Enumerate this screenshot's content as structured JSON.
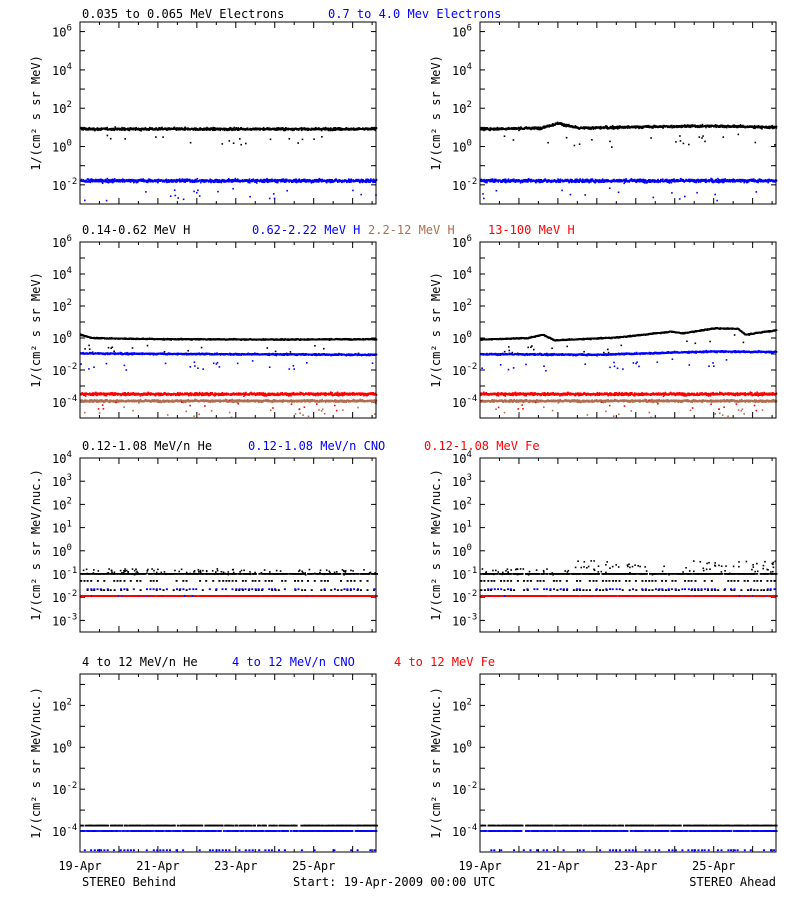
{
  "colors": {
    "black": "#000000",
    "blue": "#0000ff",
    "tan": "#b06e50",
    "red": "#ff0000"
  },
  "x_axis": {
    "tick_labels": [
      "19-Apr",
      "21-Apr",
      "23-Apr",
      "25-Apr"
    ],
    "range_days": [
      0,
      7.6
    ]
  },
  "footer": {
    "left": "STEREO Behind",
    "center": "Start: 19-Apr-2009 00:00 UTC",
    "right": "STEREO Ahead"
  },
  "rows": [
    {
      "legend": [
        {
          "text": "0.035 to 0.065 MeV Electrons",
          "color": "#000000"
        },
        {
          "text": "0.7 to 4.0 Mev Electrons",
          "color": "#0000ff"
        }
      ],
      "ylabel": "1/(cm² s sr MeV)",
      "y_exp_range": [
        -3,
        6.5
      ],
      "y_ticks": [
        {
          "exp": 6,
          "label": "6"
        },
        {
          "exp": 4,
          "label": "4"
        },
        {
          "exp": 2,
          "label": "2"
        },
        {
          "exp": 0,
          "label": "0"
        },
        {
          "exp": -2,
          "label": "-2"
        }
      ]
    },
    {
      "legend": [
        {
          "text": "0.14-0.62 MeV H",
          "color": "#000000"
        },
        {
          "text": "0.62-2.22 MeV H",
          "color": "#0000ff"
        },
        {
          "text": "2.2-12 MeV H",
          "color": "#b06e50"
        },
        {
          "text": "13-100 MeV H",
          "color": "#ff0000"
        }
      ],
      "ylabel": "1/(cm² s sr MeV)",
      "y_exp_range": [
        -5,
        6
      ],
      "y_ticks": [
        {
          "exp": 6,
          "label": "6"
        },
        {
          "exp": 4,
          "label": "4"
        },
        {
          "exp": 2,
          "label": "2"
        },
        {
          "exp": 0,
          "label": "0"
        },
        {
          "exp": -2,
          "label": "-2"
        },
        {
          "exp": -4,
          "label": "-4"
        }
      ]
    },
    {
      "legend": [
        {
          "text": "0.12-1.08 MeV/n He",
          "color": "#000000"
        },
        {
          "text": "0.12-1.08 MeV/n CNO",
          "color": "#0000ff"
        },
        {
          "text": "0.12-1.08 MeV Fe",
          "color": "#ff0000"
        }
      ],
      "ylabel": "1/(cm² s sr MeV/nuc.)",
      "y_exp_range": [
        -3.5,
        4
      ],
      "y_ticks": [
        {
          "exp": 4,
          "label": "4"
        },
        {
          "exp": 3,
          "label": "3"
        },
        {
          "exp": 2,
          "label": "2"
        },
        {
          "exp": 1,
          "label": "1"
        },
        {
          "exp": 0,
          "label": "0"
        },
        {
          "exp": -1,
          "label": "-1"
        },
        {
          "exp": -2,
          "label": "-2"
        },
        {
          "exp": -3,
          "label": "-3"
        }
      ]
    },
    {
      "legend": [
        {
          "text": "4 to 12 MeV/n He",
          "color": "#000000"
        },
        {
          "text": "4 to 12 MeV/n CNO",
          "color": "#0000ff"
        },
        {
          "text": "4 to 12 MeV Fe",
          "color": "#ff0000"
        }
      ],
      "ylabel": "1/(cm² s sr MeV/nuc.)",
      "y_exp_range": [
        -5,
        3.5
      ],
      "y_ticks": [
        {
          "exp": 2,
          "label": "2"
        },
        {
          "exp": 0,
          "label": "0"
        },
        {
          "exp": -2,
          "label": "-2"
        },
        {
          "exp": -4,
          "label": "-4"
        }
      ]
    }
  ],
  "chart_data": [
    {
      "type": "scatter",
      "panel": "electrons-behind",
      "y_scale": "log",
      "ylim": [
        0.001,
        3000000
      ],
      "series": [
        {
          "name": "0.035 to 0.065 MeV Electrons",
          "color": "#000000",
          "base": 9,
          "scatter_dex": 0.09,
          "knots": [
            [
              0,
              9
            ],
            [
              7.6,
              9
            ]
          ]
        },
        {
          "name": "0.7 to 4.0 Mev Electrons",
          "color": "#0000ff",
          "base": 0.018,
          "scatter_dex": 0.12,
          "knots": [
            [
              0,
              0.018
            ],
            [
              7.6,
              0.018
            ]
          ]
        }
      ]
    },
    {
      "type": "scatter",
      "panel": "electrons-ahead",
      "y_scale": "log",
      "ylim": [
        0.001,
        3000000
      ],
      "series": [
        {
          "name": "0.035 to 0.065 MeV Electrons",
          "color": "#000000",
          "base": 9,
          "scatter_dex": 0.09,
          "knots": [
            [
              0,
              9
            ],
            [
              1.5,
              10
            ],
            [
              2.0,
              18
            ],
            [
              2.5,
              10
            ],
            [
              4.5,
              12
            ],
            [
              6.0,
              13
            ],
            [
              7.6,
              11
            ]
          ]
        },
        {
          "name": "0.7 to 4.0 Mev Electrons",
          "color": "#0000ff",
          "base": 0.018,
          "scatter_dex": 0.12,
          "knots": [
            [
              0,
              0.018
            ],
            [
              7.6,
              0.018
            ]
          ]
        }
      ]
    },
    {
      "type": "scatter",
      "panel": "protons-behind",
      "y_scale": "log",
      "ylim": [
        1e-05,
        1000000
      ],
      "series": [
        {
          "name": "0.14-0.62 MeV H",
          "color": "#000000",
          "knots": [
            [
              0,
              1.8
            ],
            [
              0.3,
              1.1
            ],
            [
              2,
              0.95
            ],
            [
              5,
              0.9
            ],
            [
              7.6,
              0.95
            ]
          ],
          "scatter_dex": 0.05
        },
        {
          "name": "0.62-2.22 MeV H",
          "color": "#0000ff",
          "knots": [
            [
              0,
              0.12
            ],
            [
              7.6,
              0.1
            ]
          ],
          "scatter_dex": 0.07
        },
        {
          "name": "2.2-12 MeV H",
          "color": "#b06e50",
          "knots": [
            [
              0,
              0.00013
            ],
            [
              7.6,
              0.00013
            ]
          ],
          "scatter_dex": 0.1
        },
        {
          "name": "13-100 MeV H",
          "color": "#ff0000",
          "knots": [
            [
              0,
              0.00035
            ],
            [
              7.6,
              0.00035
            ]
          ],
          "scatter_dex": 0.12
        }
      ]
    },
    {
      "type": "scatter",
      "panel": "protons-ahead",
      "y_scale": "log",
      "ylim": [
        1e-05,
        1000000
      ],
      "series": [
        {
          "name": "0.14-0.62 MeV H",
          "color": "#000000",
          "knots": [
            [
              0,
              0.9
            ],
            [
              1.2,
              1.1
            ],
            [
              1.6,
              1.8
            ],
            [
              1.9,
              0.8
            ],
            [
              3.5,
              1.2
            ],
            [
              4.9,
              2.8
            ],
            [
              5.2,
              2.2
            ],
            [
              6.0,
              4.5
            ],
            [
              6.6,
              4.3
            ],
            [
              6.8,
              1.8
            ],
            [
              7.6,
              3.5
            ]
          ],
          "scatter_dex": 0.05
        },
        {
          "name": "0.62-2.22 MeV H",
          "color": "#0000ff",
          "knots": [
            [
              0,
              0.11
            ],
            [
              3,
              0.1
            ],
            [
              5,
              0.14
            ],
            [
              6,
              0.16
            ],
            [
              7.6,
              0.15
            ]
          ],
          "scatter_dex": 0.07
        },
        {
          "name": "2.2-12 MeV H",
          "color": "#b06e50",
          "knots": [
            [
              0,
              0.00013
            ],
            [
              7.6,
              0.00013
            ]
          ],
          "scatter_dex": 0.1
        },
        {
          "name": "13-100 MeV H",
          "color": "#ff0000",
          "knots": [
            [
              0,
              0.00035
            ],
            [
              7.6,
              0.00035
            ]
          ],
          "scatter_dex": 0.12
        }
      ]
    },
    {
      "type": "scatter",
      "panel": "lowE-ions-behind",
      "y_scale": "log",
      "ylim": [
        0.0003,
        10000
      ],
      "series": [
        {
          "name": "0.12-1.08 MeV/n He",
          "color": "#000000",
          "levels": [
            0.1,
            0.05,
            0.02
          ],
          "upper_level": 0.2
        },
        {
          "name": "0.12-1.08 MeV/n CNO",
          "color": "#0000ff",
          "levels": [
            0.011,
            0.022
          ]
        },
        {
          "name": "0.12-1.08 MeV Fe",
          "color": "#ff0000",
          "levels": [
            0.011
          ]
        }
      ]
    },
    {
      "type": "scatter",
      "panel": "lowE-ions-ahead",
      "y_scale": "log",
      "ylim": [
        0.0003,
        10000
      ],
      "series": [
        {
          "name": "0.12-1.08 MeV/n He",
          "color": "#000000",
          "levels": [
            0.1,
            0.05,
            0.02
          ],
          "upper_level": 0.4
        },
        {
          "name": "0.12-1.08 MeV/n CNO",
          "color": "#0000ff",
          "levels": [
            0.011,
            0.022
          ]
        },
        {
          "name": "0.12-1.08 MeV Fe",
          "color": "#ff0000",
          "levels": [
            0.011
          ]
        }
      ]
    },
    {
      "type": "scatter",
      "panel": "highE-ions-behind",
      "y_scale": "log",
      "ylim": [
        1e-05,
        3000
      ],
      "series": [
        {
          "name": "4 to 12 MeV/n He",
          "color": "#000000",
          "levels": [
            0.00018
          ]
        },
        {
          "name": "4 to 12 MeV/n CNO",
          "color": "#0000ff",
          "levels": [
            0.0001,
            1.2e-05
          ]
        },
        {
          "name": "4 to 12 MeV Fe",
          "color": "#ff0000",
          "levels": []
        }
      ]
    },
    {
      "type": "scatter",
      "panel": "highE-ions-ahead",
      "y_scale": "log",
      "ylim": [
        1e-05,
        3000
      ],
      "series": [
        {
          "name": "4 to 12 MeV/n He",
          "color": "#000000",
          "levels": [
            0.00018
          ]
        },
        {
          "name": "4 to 12 MeV/n CNO",
          "color": "#0000ff",
          "levels": [
            0.0001,
            1.2e-05
          ]
        },
        {
          "name": "4 to 12 MeV Fe",
          "color": "#ff0000",
          "levels": []
        }
      ]
    }
  ]
}
